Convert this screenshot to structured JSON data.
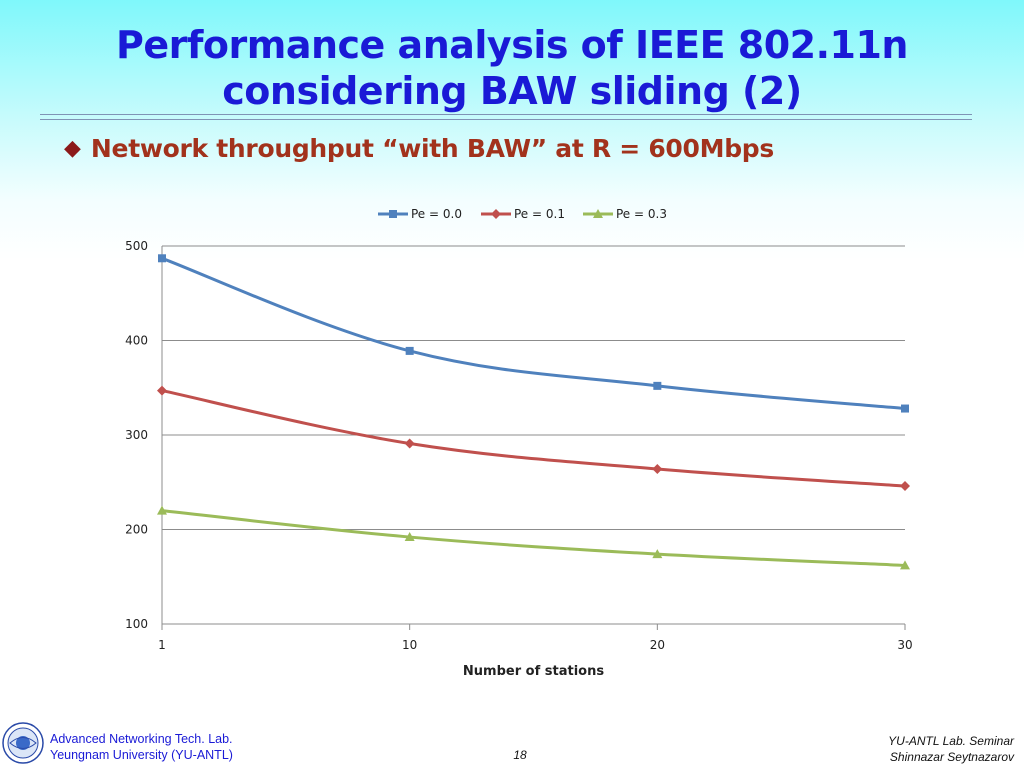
{
  "slide": {
    "title_line1": "Performance analysis of IEEE 802.11n",
    "title_line2": "considering BAW sliding (2)",
    "bullet": "Network throughput “with BAW” at R = 600Mbps"
  },
  "footer": {
    "lab": "Advanced Networking Tech. Lab.",
    "university": "Yeungnam University (YU-ANTL)",
    "page": "18",
    "seminar": "YU-ANTL Lab. Seminar",
    "author": "Shinnazar Seytnazarov"
  },
  "colors": {
    "title": "#1a1ad6",
    "bullet": "#a2321c",
    "series": [
      "#4f81bd",
      "#c0504d",
      "#9bbb59"
    ]
  },
  "chart_data": {
    "type": "line",
    "x": [
      1,
      10,
      20,
      30
    ],
    "xlabel": "Number of stations",
    "ylabel": "",
    "ylim": [
      100,
      500
    ],
    "yticks": [
      100,
      200,
      300,
      400,
      500
    ],
    "grid": true,
    "legend": "top",
    "series": [
      {
        "name": "Pe = 0.0",
        "marker": "square",
        "values": [
          487,
          389,
          352,
          328
        ]
      },
      {
        "name": "Pe = 0.1",
        "marker": "diamond",
        "values": [
          347,
          291,
          264,
          246
        ]
      },
      {
        "name": "Pe = 0.3",
        "marker": "triangle",
        "values": [
          220,
          192,
          174,
          162
        ]
      }
    ]
  }
}
